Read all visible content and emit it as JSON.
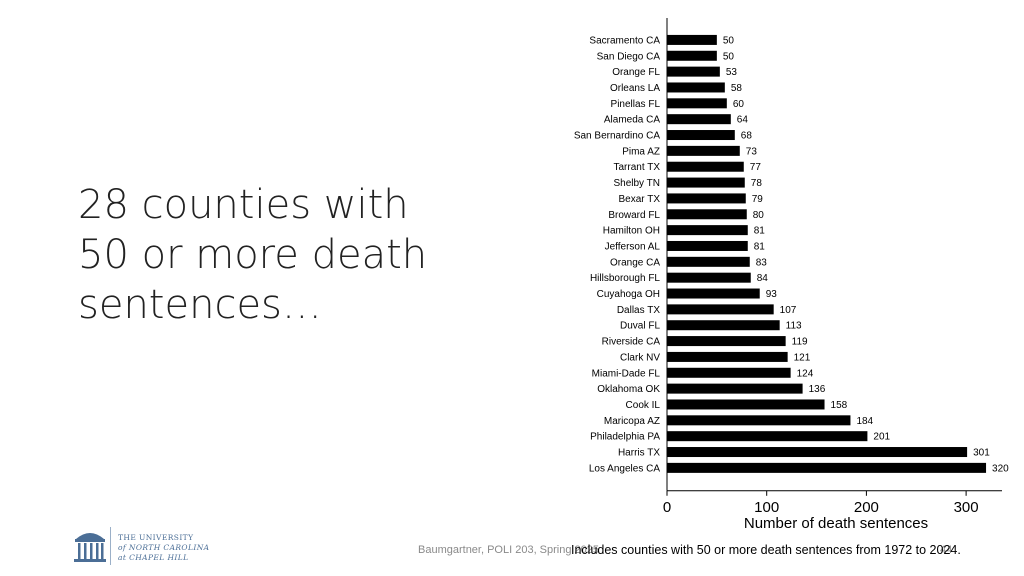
{
  "slide": {
    "title_lines": [
      "28 counties with",
      "50 or more death",
      "sentences…"
    ],
    "footer": "Baumgartner, POLI 203, Spring 2025",
    "page_number": "44",
    "note": "Includes counties with 50 or more death sentences from 1972 to 2024."
  },
  "logo": {
    "line1": "THE UNIVERSITY",
    "line2": "of NORTH CAROLINA",
    "line3": "at CHAPEL HILL"
  },
  "colors": {
    "bar": "#000000",
    "logo": "#4B6E96",
    "footer": "#8a8a8a"
  },
  "chart_data": {
    "type": "bar",
    "orientation": "horizontal",
    "categories": [
      "Sacramento CA",
      "San Diego CA",
      "Orange FL",
      "Orleans LA",
      "Pinellas FL",
      "Alameda CA",
      "San Bernardino CA",
      "Pima AZ",
      "Tarrant TX",
      "Shelby TN",
      "Bexar TX",
      "Broward FL",
      "Hamilton OH",
      "Jefferson AL",
      "Orange CA",
      "Hillsborough FL",
      "Cuyahoga OH",
      "Dallas TX",
      "Duval FL",
      "Riverside CA",
      "Clark NV",
      "Miami-Dade FL",
      "Oklahoma OK",
      "Cook IL",
      "Maricopa AZ",
      "Philadelphia PA",
      "Harris TX",
      "Los Angeles CA"
    ],
    "values": [
      50,
      50,
      53,
      58,
      60,
      64,
      68,
      73,
      77,
      78,
      79,
      80,
      81,
      81,
      83,
      84,
      93,
      107,
      113,
      119,
      121,
      124,
      136,
      158,
      184,
      201,
      301,
      320
    ],
    "xlabel": "Number of death sentences",
    "xlim": [
      0,
      336
    ],
    "xticks": [
      0,
      100,
      200,
      300
    ],
    "grid": false,
    "data_labels": true
  }
}
